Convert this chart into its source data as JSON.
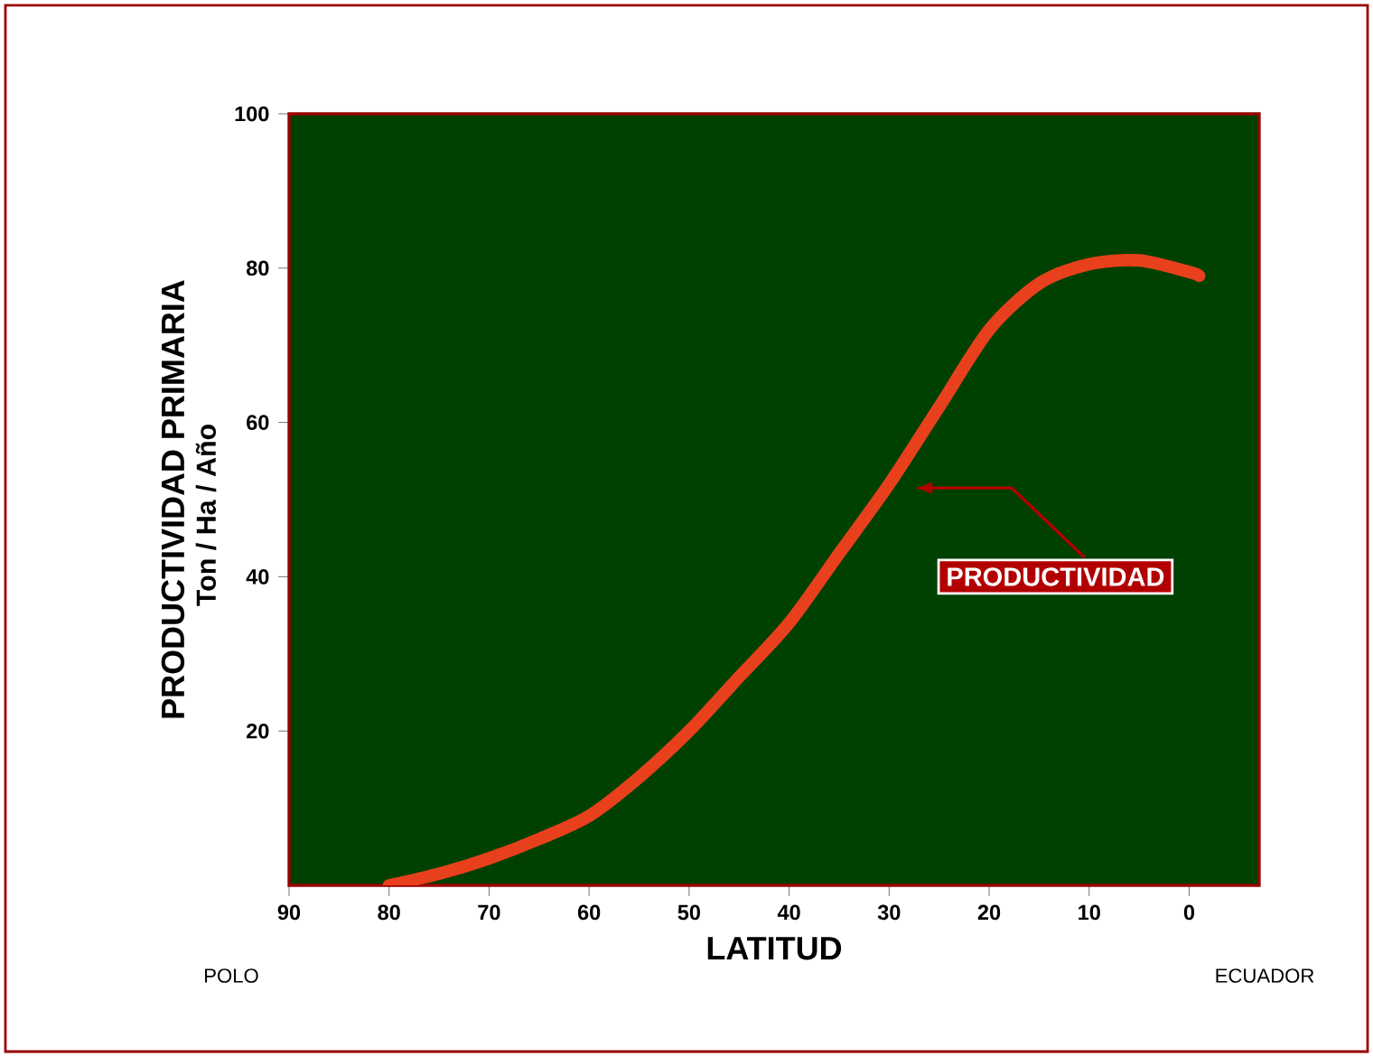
{
  "chart_data": {
    "type": "line",
    "xlabel": "LATITUD",
    "ylabel": "PRODUCTIVIDAD PRIMARIA",
    "annotations": [
      "Ton / Ha / Año",
      "POLO",
      "ECUADOR",
      "PRODUCTIVIDAD"
    ],
    "x": [
      80,
      75,
      70,
      65,
      60,
      55,
      50,
      45,
      40,
      35,
      30,
      25,
      20,
      15,
      10,
      5,
      0,
      -1
    ],
    "series": [
      {
        "color": "#e8401c",
        "values": [
          0,
          1.5,
          3.5,
          6,
          9,
          14,
          20,
          27,
          34,
          43,
          52,
          62,
          72,
          78,
          80.5,
          81,
          79.5,
          79
        ]
      }
    ],
    "xlim": [
      90,
      -7
    ],
    "xticks": [
      90,
      80,
      70,
      60,
      50,
      40,
      30,
      20,
      10,
      0
    ],
    "ylim": [
      0,
      100
    ],
    "yticks": [
      20,
      40,
      60,
      80,
      100
    ],
    "grid": false,
    "marker": "none",
    "line_style": "solid"
  }
}
